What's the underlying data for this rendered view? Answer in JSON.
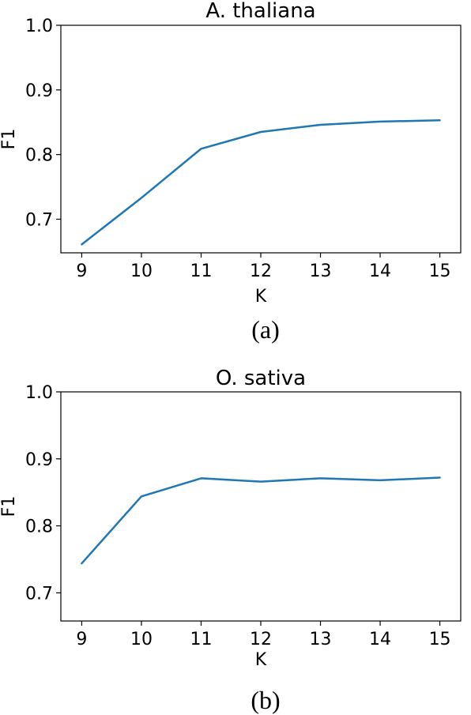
{
  "chart_data": [
    {
      "type": "line",
      "title": "A. thaliana",
      "xlabel": "K",
      "ylabel": "F1",
      "caption": "(a)",
      "x": [
        9,
        10,
        11,
        12,
        13,
        14,
        15
      ],
      "series": [
        {
          "values": [
            0.661,
            0.733,
            0.809,
            0.835,
            0.846,
            0.851,
            0.853
          ]
        }
      ],
      "xlim": [
        8.65,
        15.35
      ],
      "ylim": [
        0.648,
        1.0
      ],
      "xticks": [
        9,
        10,
        11,
        12,
        13,
        14,
        15
      ],
      "yticks": [
        0.7,
        0.8,
        0.9,
        1.0
      ],
      "ytick_labels": [
        "0.7",
        "0.8",
        "0.9",
        "1.0"
      ],
      "color": "#1f77b4",
      "grid": false
    },
    {
      "type": "line",
      "title": "O. sativa",
      "xlabel": "K",
      "ylabel": "F1",
      "caption": "(b)",
      "x": [
        9,
        10,
        11,
        12,
        13,
        14,
        15
      ],
      "series": [
        {
          "values": [
            0.744,
            0.844,
            0.871,
            0.866,
            0.871,
            0.868,
            0.872
          ]
        }
      ],
      "xlim": [
        8.65,
        15.35
      ],
      "ylim": [
        0.658,
        1.0
      ],
      "xticks": [
        9,
        10,
        11,
        12,
        13,
        14,
        15
      ],
      "yticks": [
        0.7,
        0.8,
        0.9,
        1.0
      ],
      "ytick_labels": [
        "0.7",
        "0.8",
        "0.9",
        "1.0"
      ],
      "color": "#1f77b4",
      "grid": false
    }
  ]
}
